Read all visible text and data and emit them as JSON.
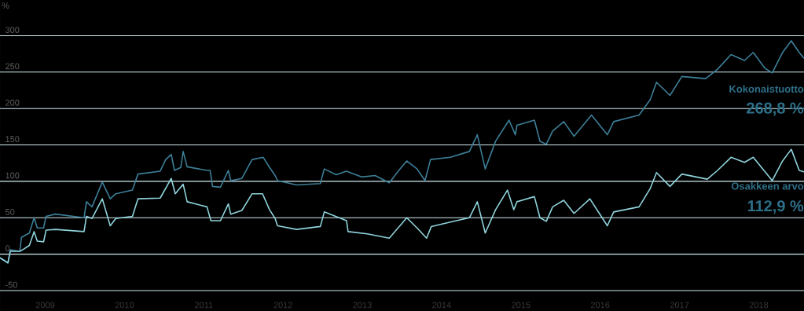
{
  "chart_data": {
    "type": "line",
    "ylabel": "%",
    "xlim": [
      2008.93,
      2019.07
    ],
    "ylim": [
      -78,
      349
    ],
    "xticks": [
      {
        "value": 2009.5,
        "label": "2009"
      },
      {
        "value": 2010.5,
        "label": "2010"
      },
      {
        "value": 2011.5,
        "label": "2011"
      },
      {
        "value": 2012.5,
        "label": "2012"
      },
      {
        "value": 2013.5,
        "label": "2013"
      },
      {
        "value": 2014.5,
        "label": "2014"
      },
      {
        "value": 2015.5,
        "label": "2015"
      },
      {
        "value": 2016.5,
        "label": "2016"
      },
      {
        "value": 2017.5,
        "label": "2017"
      },
      {
        "value": 2018.5,
        "label": "2018"
      }
    ],
    "yticks": [
      -50,
      0,
      50,
      100,
      150,
      200,
      250,
      300
    ],
    "grid": "y",
    "marker": "none",
    "line_style": "solid",
    "series": [
      {
        "name": "Kokonaistuotto",
        "color": "#3d7f98",
        "x": [
          2008.93,
          2009.03,
          2009.06,
          2009.18,
          2009.2,
          2009.3,
          2009.36,
          2009.4,
          2009.48,
          2009.51,
          2009.63,
          2009.99,
          2010.02,
          2010.09,
          2010.22,
          2010.32,
          2010.39,
          2010.6,
          2010.67,
          2010.95,
          2011.02,
          2011.09,
          2011.13,
          2011.21,
          2011.24,
          2011.29,
          2011.54,
          2011.58,
          2011.61,
          2011.71,
          2011.81,
          2011.84,
          2011.98,
          2012.11,
          2012.25,
          2012.33,
          2012.4,
          2012.43,
          2012.67,
          2012.97,
          2013.02,
          2013.17,
          2013.3,
          2013.49,
          2013.66,
          2013.84,
          2013.96,
          2014.06,
          2014.19,
          2014.29,
          2014.36,
          2014.61,
          2014.85,
          2014.95,
          2015.05,
          2015.18,
          2015.35,
          2015.43,
          2015.45,
          2015.67,
          2015.74,
          2015.82,
          2015.9,
          2016.04,
          2016.17,
          2016.39,
          2016.59,
          2016.67,
          2016.99,
          2017.13,
          2017.21,
          2017.38,
          2017.53,
          2017.83,
          2017.98,
          2018.15,
          2018.32,
          2018.43,
          2018.58,
          2018.67,
          2018.8,
          2018.91,
          2019.01,
          2019.07
        ],
        "values": [
          -5,
          -12,
          6,
          4,
          23,
          29,
          50,
          36,
          36,
          52,
          55,
          50,
          72,
          65,
          99,
          76,
          83,
          88,
          110,
          114,
          130,
          137,
          115,
          119,
          141,
          120,
          115,
          115,
          93,
          92,
          115,
          101,
          104,
          130,
          133,
          119,
          108,
          101,
          95,
          97,
          117,
          109,
          114,
          106,
          108,
          98,
          115,
          128,
          117,
          101,
          130,
          133,
          141,
          164,
          117,
          155,
          184,
          164,
          177,
          184,
          155,
          151,
          169,
          182,
          162,
          191,
          164,
          182,
          191,
          212,
          236,
          218,
          244,
          241,
          254,
          274,
          266,
          277,
          255,
          249,
          277,
          293,
          277,
          269
        ]
      },
      {
        "name": "Osakkeen arvo",
        "color": "#8fd3dc",
        "x": [
          2008.93,
          2009.03,
          2009.06,
          2009.18,
          2009.23,
          2009.3,
          2009.36,
          2009.4,
          2009.48,
          2009.51,
          2009.63,
          2009.99,
          2010.02,
          2010.09,
          2010.22,
          2010.32,
          2010.39,
          2010.6,
          2010.67,
          2010.95,
          2011.09,
          2011.14,
          2011.24,
          2011.29,
          2011.54,
          2011.59,
          2011.71,
          2011.81,
          2011.84,
          2011.98,
          2012.11,
          2012.24,
          2012.33,
          2012.4,
          2012.43,
          2012.67,
          2012.97,
          2013.02,
          2013.3,
          2013.32,
          2013.56,
          2013.84,
          2014.06,
          2014.19,
          2014.31,
          2014.37,
          2014.61,
          2014.85,
          2014.95,
          2015.05,
          2015.18,
          2015.33,
          2015.41,
          2015.45,
          2015.67,
          2015.74,
          2015.82,
          2015.9,
          2016.04,
          2016.17,
          2016.37,
          2016.59,
          2016.67,
          2016.99,
          2017.13,
          2017.21,
          2017.38,
          2017.53,
          2017.85,
          2017.98,
          2018.15,
          2018.32,
          2018.43,
          2018.67,
          2018.8,
          2018.91,
          2019.01,
          2019.07
        ],
        "values": [
          -5,
          -12,
          4,
          4,
          7,
          12,
          31,
          18,
          17,
          33,
          34,
          31,
          52,
          49,
          76,
          39,
          49,
          52,
          76,
          77,
          104,
          83,
          96,
          72,
          65,
          46,
          46,
          69,
          55,
          60,
          83,
          83,
          61,
          49,
          39,
          34,
          38,
          58,
          46,
          31,
          28,
          22,
          50,
          36,
          22,
          38,
          44,
          50,
          72,
          29,
          61,
          88,
          61,
          72,
          79,
          50,
          45,
          65,
          74,
          56,
          76,
          39,
          58,
          65,
          90,
          112,
          93,
          110,
          103,
          115,
          133,
          126,
          133,
          101,
          128,
          144,
          115,
          113
        ]
      }
    ],
    "annotations": [
      {
        "text": "268,8 %",
        "x": 2019.07,
        "y": 268.8
      },
      {
        "text": "112,9 %",
        "x": 2019.07,
        "y": 112.9
      }
    ]
  }
}
